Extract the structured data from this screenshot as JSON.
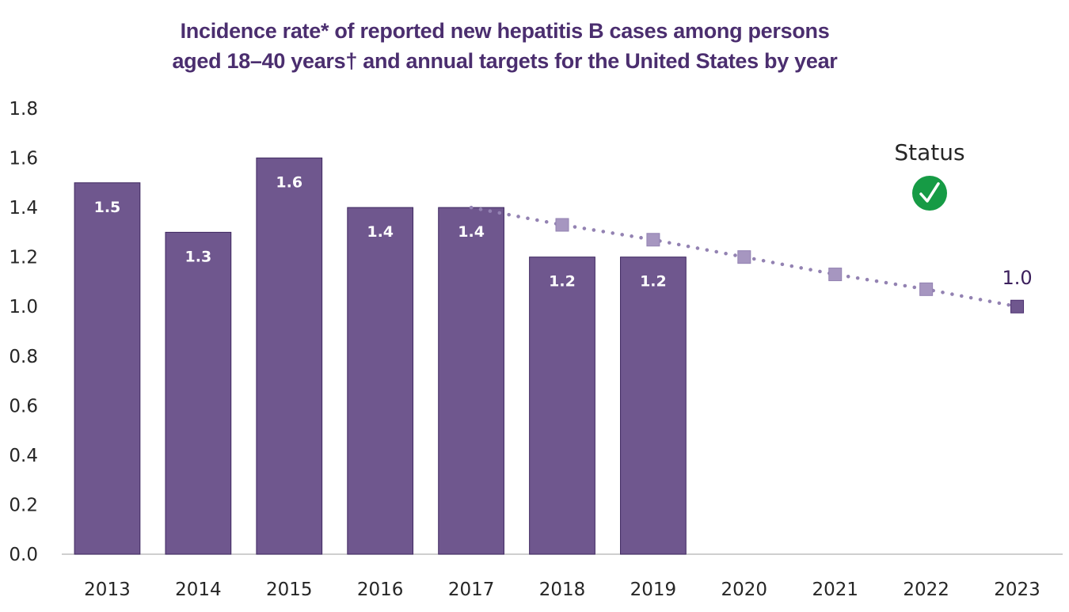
{
  "chart_data": {
    "type": "bar",
    "title_lines": [
      "Incidence rate* of reported new hepatitis B cases among persons",
      "aged 18–40 years† and annual targets for the United States by year"
    ],
    "xlabel": "",
    "ylabel": "",
    "categories": [
      "2013",
      "2014",
      "2015",
      "2016",
      "2017",
      "2018",
      "2019",
      "2020",
      "2021",
      "2022",
      "2023"
    ],
    "series": [
      {
        "name": "Incidence rate",
        "kind": "bar",
        "values": [
          1.5,
          1.3,
          1.6,
          1.4,
          1.4,
          1.2,
          1.2,
          null,
          null,
          null,
          null
        ],
        "labels": [
          "1.5",
          "1.3",
          "1.6",
          "1.4",
          "1.4",
          "1.2",
          "1.2"
        ],
        "color": "#6f578e"
      },
      {
        "name": "Annual target",
        "kind": "line-dotted",
        "values": [
          null,
          null,
          null,
          null,
          1.4,
          1.33,
          1.27,
          1.2,
          1.13,
          1.07,
          1.0
        ],
        "color": "#a696c0",
        "final_color": "#6f578e",
        "final_label": "1.0"
      }
    ],
    "yticks": [
      "0.0",
      "0.2",
      "0.4",
      "0.6",
      "0.8",
      "1.0",
      "1.2",
      "1.4",
      "1.6",
      "1.8"
    ],
    "ylim": [
      0,
      1.8
    ],
    "grid": false,
    "legend": "none",
    "annotations": [
      {
        "text": "Status",
        "icon": "check-circle-icon",
        "icon_color": "#169b45",
        "position": "top-right"
      }
    ]
  }
}
